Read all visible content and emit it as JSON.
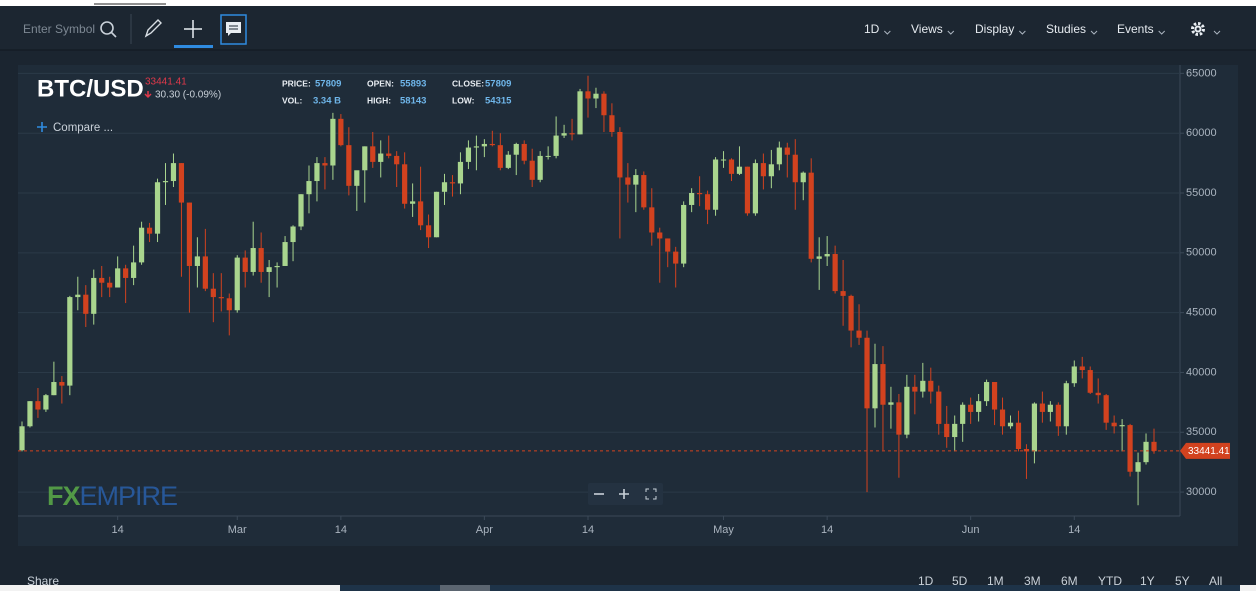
{
  "toolbar": {
    "search_placeholder": "Enter Symbol",
    "menus": [
      "1D",
      "Views",
      "Display",
      "Studies",
      "Events"
    ]
  },
  "compare": "Compare ...",
  "logo": [
    "FX",
    "EMPIRE"
  ],
  "footer": {
    "share": "Share",
    "ranges": [
      "1D",
      "5D",
      "1M",
      "3M",
      "6M",
      "YTD",
      "1Y",
      "5Y",
      "All"
    ]
  },
  "chart_data": {
    "type": "candlestick",
    "title": "BTC/USD",
    "last_price": 33441.41,
    "change": "30.30 (-0.09%)",
    "info": [
      {
        "label": "PRICE:",
        "value": 57809
      },
      {
        "label": "OPEN:",
        "value": 55893
      },
      {
        "label": "CLOSE:",
        "value": 57809
      },
      {
        "label": "VOL:",
        "value": "3.34 B"
      },
      {
        "label": "HIGH:",
        "value": 58143
      },
      {
        "label": "LOW:",
        "value": 54315
      }
    ],
    "up_color": "#a9d58e",
    "down_color": "#d2421f",
    "last_price_color": "#d2421f",
    "grid": true,
    "ylim": [
      28000,
      65700
    ],
    "yticks": [
      30000,
      35000,
      40000,
      45000,
      50000,
      55000,
      60000,
      65000
    ],
    "categories": [
      null,
      null,
      null,
      null,
      null,
      null,
      null,
      null,
      null,
      null,
      null,
      null,
      "14",
      null,
      null,
      null,
      null,
      null,
      null,
      null,
      null,
      null,
      null,
      null,
      null,
      null,
      null,
      "Mar",
      null,
      null,
      null,
      null,
      null,
      null,
      null,
      null,
      null,
      null,
      null,
      null,
      "14",
      null,
      null,
      null,
      null,
      null,
      null,
      null,
      null,
      null,
      null,
      null,
      null,
      null,
      null,
      null,
      null,
      null,
      "Apr",
      null,
      null,
      null,
      null,
      null,
      null,
      null,
      null,
      null,
      null,
      null,
      null,
      "14",
      null,
      null,
      null,
      null,
      null,
      null,
      null,
      null,
      null,
      null,
      null,
      null,
      null,
      null,
      null,
      null,
      "May",
      null,
      null,
      null,
      null,
      null,
      null,
      null,
      null,
      null,
      null,
      null,
      null,
      "14",
      null,
      null,
      null,
      null,
      null,
      null,
      null,
      null,
      null,
      null,
      null,
      null,
      null,
      null,
      null,
      null,
      null,
      "Jun",
      null,
      null,
      null,
      null,
      null,
      null,
      null,
      null,
      null,
      null,
      null,
      null,
      "14",
      null,
      null,
      null,
      null,
      null,
      null,
      null,
      null,
      null,
      null
    ],
    "open": [
      33500,
      35500,
      37600,
      36900,
      38100,
      39200,
      38900,
      46300,
      46500,
      44900,
      47900,
      47500,
      47100,
      48700,
      47900,
      49200,
      52100,
      51600,
      55900,
      56000,
      57500,
      54200,
      48900,
      49700,
      47000,
      46300,
      46200,
      45200,
      49600,
      48400,
      50400,
      48400,
      48800,
      48900,
      50900,
      52200,
      54900,
      56000,
      57500,
      57300,
      61200,
      59000,
      55600,
      56900,
      58900,
      57600,
      58300,
      58100,
      57400,
      54100,
      54300,
      52300,
      51300,
      55100,
      55900,
      55800,
      57600,
      58800,
      58900,
      59100,
      59000,
      57100,
      58200,
      59100,
      57700,
      56100,
      58100,
      58100,
      59800,
      60000,
      59900,
      63500,
      62900,
      63300,
      61500,
      60100,
      56300,
      55700,
      56500,
      53800,
      51700,
      51200,
      50100,
      49100,
      54000,
      55000,
      54900,
      53600,
      57800,
      57800,
      56600,
      57200,
      53300,
      57500,
      56400,
      57400,
      58800,
      58200,
      55900,
      56700,
      49500,
      49700,
      49900,
      46800,
      46400,
      43500,
      42900,
      37000,
      40700,
      37300,
      37500,
      34800,
      38800,
      38400,
      39300,
      38400,
      35700,
      34600,
      35700,
      37300,
      36700,
      37600,
      39200,
      36900,
      35500,
      35800,
      33600,
      33400,
      37400,
      36700,
      37300,
      35500,
      39100,
      40500,
      40200,
      38300,
      38100,
      35800,
      35500,
      35600,
      31700,
      32500,
      34200
    ],
    "high": [
      35900,
      37600,
      38700,
      38200,
      40900,
      39700,
      46400,
      48000,
      47300,
      48600,
      48900,
      48000,
      49700,
      49000,
      50600,
      52600,
      52500,
      56200,
      57500,
      58300,
      57500,
      54200,
      51300,
      52000,
      48300,
      48300,
      46600,
      49800,
      50200,
      52600,
      51700,
      49400,
      49200,
      51400,
      52300,
      54900,
      57300,
      58000,
      58000,
      61700,
      61600,
      60500,
      56800,
      58900,
      60100,
      59400,
      59800,
      58500,
      58400,
      55800,
      57200,
      53200,
      55100,
      56600,
      56500,
      58400,
      59400,
      59800,
      59500,
      60200,
      60000,
      58500,
      59200,
      59400,
      58700,
      58500,
      58900,
      61400,
      60700,
      61200,
      63700,
      64800,
      63800,
      63500,
      62500,
      60500,
      57500,
      57000,
      56800,
      55400,
      52100,
      51200,
      50500,
      54300,
      55400,
      56400,
      55200,
      58000,
      58500,
      57900,
      58900,
      57200,
      57800,
      58300,
      58600,
      59300,
      59200,
      59500,
      56800,
      57900,
      51300,
      51400,
      50600,
      49400,
      46500,
      45700,
      43500,
      42400,
      42200,
      38800,
      38200,
      39800,
      39800,
      40800,
      40400,
      38900,
      37200,
      36400,
      37500,
      37900,
      38200,
      39400,
      39200,
      37900,
      36400,
      36800,
      34000,
      37500,
      38400,
      37600,
      37500,
      39300,
      41000,
      41300,
      40500,
      39500,
      38200,
      36400,
      36100,
      35700,
      33300,
      34900,
      35300
    ],
    "low": [
      33400,
      35400,
      36200,
      36700,
      38100,
      37400,
      38100,
      45200,
      43800,
      44000,
      46300,
      46300,
      47100,
      45800,
      47300,
      49000,
      50900,
      50900,
      54000,
      55500,
      48000,
      45000,
      47100,
      46800,
      44200,
      45100,
      43100,
      45000,
      47100,
      48100,
      47500,
      46300,
      47100,
      48900,
      49300,
      51900,
      53300,
      54300,
      55300,
      56100,
      58900,
      54800,
      53500,
      54200,
      57100,
      56300,
      57900,
      55500,
      53700,
      53000,
      51900,
      50400,
      51300,
      54000,
      54700,
      54900,
      57000,
      56900,
      58000,
      58900,
      56900,
      57000,
      56500,
      57400,
      55500,
      55900,
      57800,
      57900,
      59600,
      59400,
      59900,
      61300,
      62100,
      60100,
      59700,
      51200,
      54200,
      53400,
      53600,
      50600,
      47500,
      48800,
      47100,
      48800,
      53400,
      53900,
      52400,
      53100,
      57100,
      56000,
      56500,
      53100,
      53100,
      55300,
      55400,
      56900,
      56300,
      53600,
      54400,
      49200,
      46900,
      48900,
      46600,
      43900,
      42100,
      42300,
      30000,
      35400,
      33500,
      35300,
      31200,
      34500,
      36500,
      37900,
      37400,
      34800,
      33700,
      33400,
      34200,
      35700,
      35900,
      37200,
      35600,
      34800,
      35300,
      33400,
      31100,
      32400,
      35800,
      35900,
      34700,
      34800,
      38800,
      39500,
      38200,
      37400,
      35200,
      34900,
      33400,
      31300,
      28900,
      32300,
      33200
    ],
    "close": [
      35500,
      37600,
      36900,
      38100,
      39200,
      38900,
      46300,
      46500,
      44900,
      47900,
      47500,
      47100,
      48700,
      47900,
      49200,
      52100,
      51600,
      55900,
      56000,
      57500,
      54200,
      48900,
      49700,
      47000,
      46300,
      46200,
      45200,
      49600,
      48400,
      50400,
      48400,
      48800,
      48900,
      50900,
      52200,
      54900,
      56000,
      57500,
      57300,
      61200,
      59000,
      55600,
      56900,
      58900,
      57600,
      58300,
      58100,
      57400,
      54100,
      54300,
      52300,
      51300,
      55100,
      55900,
      55800,
      57600,
      58800,
      58900,
      59100,
      59000,
      57100,
      58200,
      59100,
      57700,
      56100,
      58100,
      58100,
      59800,
      60000,
      59900,
      63500,
      62900,
      63300,
      61500,
      60100,
      56300,
      55700,
      56500,
      53800,
      51700,
      51200,
      50100,
      49100,
      54000,
      55000,
      54900,
      53600,
      57800,
      57800,
      56600,
      57200,
      53300,
      57500,
      56400,
      57400,
      58800,
      58200,
      55900,
      56700,
      49500,
      49700,
      49900,
      46800,
      46400,
      43500,
      42900,
      37000,
      40700,
      37300,
      37500,
      34800,
      38800,
      38400,
      39300,
      38400,
      35700,
      34600,
      35700,
      37300,
      36700,
      37600,
      39200,
      36900,
      35500,
      35800,
      33600,
      33400,
      37400,
      36700,
      37300,
      35500,
      39100,
      40500,
      40200,
      38300,
      38100,
      35800,
      35500,
      35600,
      31700,
      32500,
      34200,
      33441.41
    ]
  }
}
